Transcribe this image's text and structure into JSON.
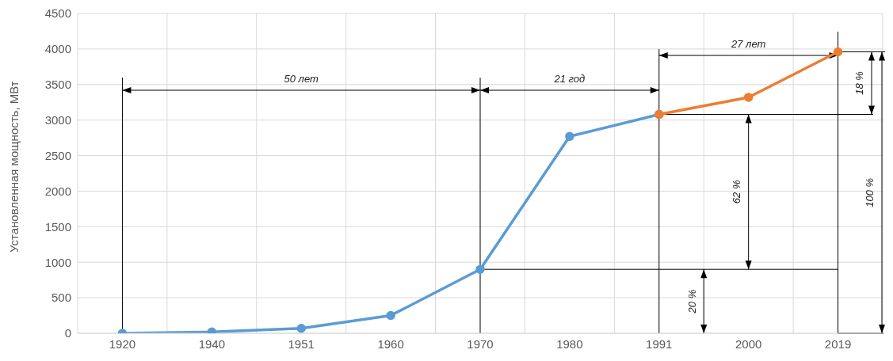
{
  "chart_data": {
    "type": "line",
    "ylabel": "Установленная мощность, МВт",
    "categories": [
      "1920",
      "1940",
      "1951",
      "1960",
      "1970",
      "1980",
      "1991",
      "2000",
      "2019"
    ],
    "series": [
      {
        "color": "#5b9bd5",
        "values": [
          0,
          20,
          70,
          250,
          900,
          2770,
          3080,
          null,
          null
        ]
      },
      {
        "color": "#ed7d31",
        "values": [
          null,
          null,
          null,
          null,
          null,
          null,
          3080,
          3320,
          3960
        ]
      }
    ],
    "ylim": [
      0,
      4500
    ],
    "yticks": [
      0,
      500,
      1000,
      1500,
      2000,
      2500,
      3000,
      3500,
      4000,
      4500
    ],
    "ref_lines": [
      {
        "axis": "y",
        "value": 900,
        "color": "#000000"
      }
    ],
    "grid": true,
    "marker": "circle",
    "line_style": "solid",
    "annotations": [
      "50 лет",
      "21 год",
      "27 лет",
      "20 %",
      "62 %",
      "18 %",
      "100 %"
    ]
  }
}
